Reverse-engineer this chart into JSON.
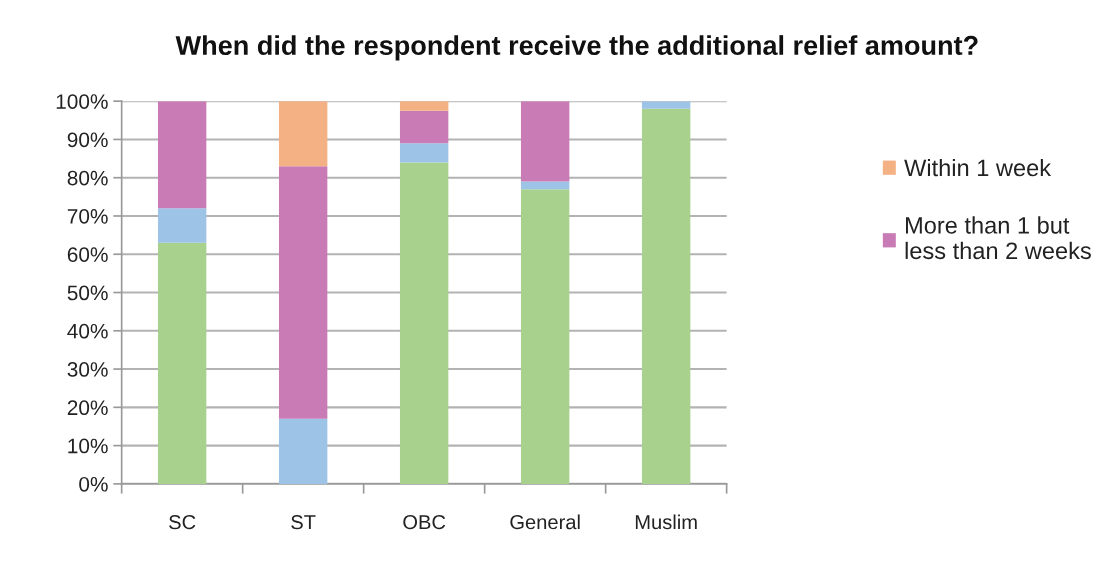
{
  "chart_data": {
    "type": "bar",
    "stacked": true,
    "title": "When did the respondent receive the additional relief amount?",
    "categories": [
      "SC",
      "ST",
      "OBC",
      "General",
      "Muslim"
    ],
    "series": [
      {
        "color": "#a9d18e",
        "values": [
          63,
          0,
          84,
          77,
          98
        ]
      },
      {
        "color": "#9dc3e6",
        "values": [
          9,
          17,
          5,
          2,
          2
        ]
      },
      {
        "name": "More than 1 but\nless than 2 weeks",
        "color": "#c97bb5",
        "values": [
          28,
          66,
          8.5,
          21,
          0
        ]
      },
      {
        "name": "Within 1 week",
        "color": "#f4b183",
        "values": [
          0,
          17,
          2.5,
          0,
          0
        ]
      }
    ],
    "ylim": [
      0,
      100
    ],
    "yticks": [
      {
        "value": 0,
        "label": "0%"
      },
      {
        "value": 10,
        "label": "10%"
      },
      {
        "value": 20,
        "label": "20%"
      },
      {
        "value": 30,
        "label": "30%"
      },
      {
        "value": 40,
        "label": "40%"
      },
      {
        "value": 50,
        "label": "50%"
      },
      {
        "value": 60,
        "label": "60%"
      },
      {
        "value": 70,
        "label": "70%"
      },
      {
        "value": 80,
        "label": "80%"
      },
      {
        "value": 90,
        "label": "90%"
      },
      {
        "value": 100,
        "label": "100%"
      }
    ],
    "grid": "y",
    "legend": "right"
  }
}
